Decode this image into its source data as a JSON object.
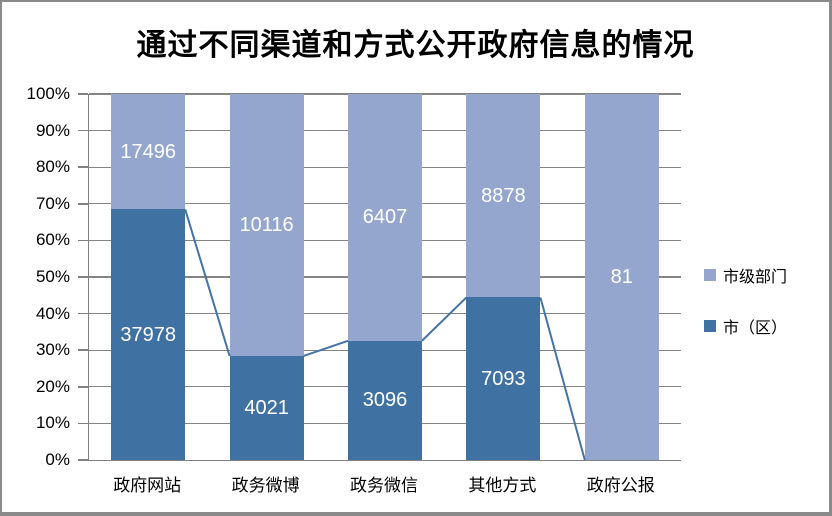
{
  "chart_data": {
    "type": "bar",
    "subtype": "100-percent-stacked-column",
    "title": "通过不同渠道和方式公开政府信息的情况",
    "categories": [
      "政府网站",
      "政务微博",
      "政务微信",
      "其他方式",
      "政府公报"
    ],
    "series": [
      {
        "name": "市级部门",
        "stack_position": "top",
        "color": "#94A6CE",
        "values": [
          17496,
          10116,
          6407,
          8878,
          81
        ]
      },
      {
        "name": "市（区）",
        "stack_position": "bottom",
        "color": "#4071A3",
        "values": [
          37978,
          4021,
          3096,
          7093,
          0
        ]
      }
    ],
    "data_labels": {
      "show": true,
      "color": "#FFFFFF",
      "hide_zero": true
    },
    "y_axis": {
      "min": 0,
      "max": 100,
      "ticks": [
        "0%",
        "10%",
        "20%",
        "30%",
        "40%",
        "50%",
        "60%",
        "70%",
        "80%",
        "90%",
        "100%"
      ]
    },
    "grid": {
      "horizontal": true,
      "color": "#848484"
    },
    "axis_line_color": "#808080",
    "series_line": {
      "present": true,
      "color": "#4473A8",
      "width": 2
    },
    "legend": {
      "position": "right"
    }
  }
}
